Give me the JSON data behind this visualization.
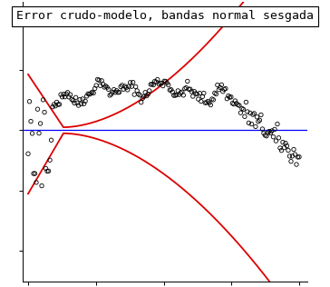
{
  "title": "Error crudo-modelo, bandas normal sesgada",
  "title_fontsize": 9.5,
  "background_color": "#ffffff",
  "line_color_blue": "#0000ff",
  "line_color_red": "#dd0000",
  "scatter_color": "#000000",
  "n_points": 200,
  "seed": 42,
  "xlim": [
    0.0,
    1.0
  ],
  "ylim": [
    -1.0,
    0.85
  ],
  "horizontal_line_y": 0.0,
  "scatter_size": 10,
  "scatter_lw": 0.6,
  "band_lw": 1.3
}
